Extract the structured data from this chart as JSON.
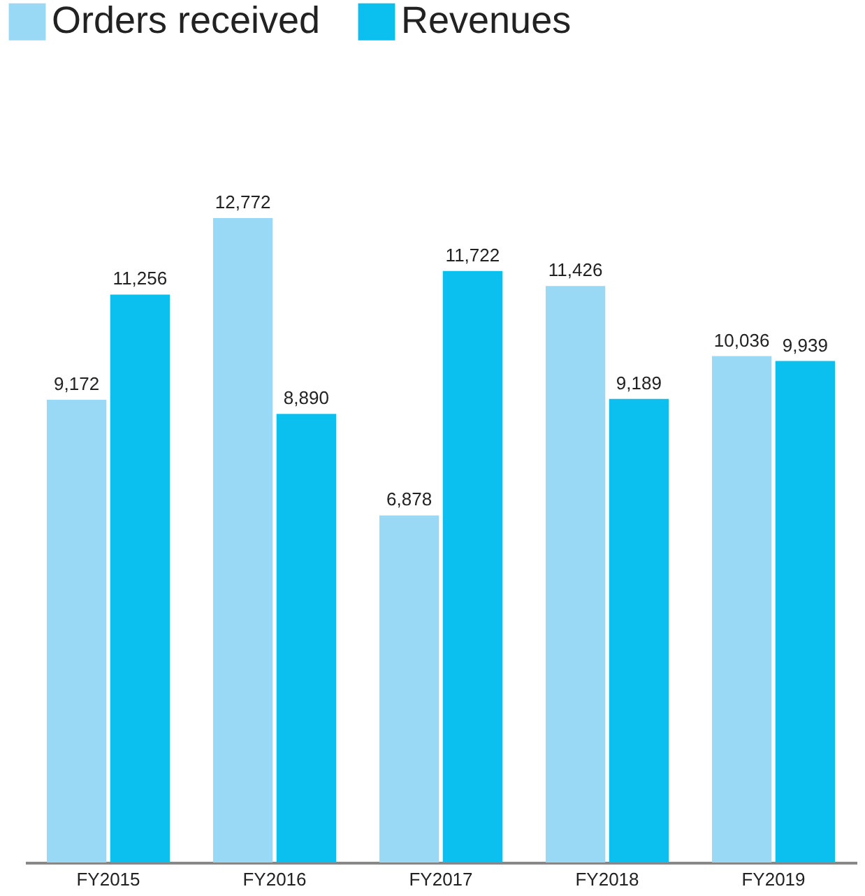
{
  "chart_data": {
    "type": "bar",
    "categories": [
      "FY2015",
      "FY2016",
      "FY2017",
      "FY2018",
      "FY2019"
    ],
    "series": [
      {
        "name": "Orders received",
        "color": "#99d9f5",
        "values": [
          9172,
          12772,
          6878,
          11426,
          10036
        ],
        "value_labels": [
          "9,172",
          "12,772",
          "6,878",
          "11,426",
          "10,036"
        ]
      },
      {
        "name": "Revenues",
        "color": "#0bbfef",
        "values": [
          11256,
          8890,
          11722,
          9189,
          9939
        ],
        "value_labels": [
          "11,256",
          "8,890",
          "11,722",
          "9,189",
          "9,939"
        ]
      }
    ],
    "legend": "top left"
  }
}
